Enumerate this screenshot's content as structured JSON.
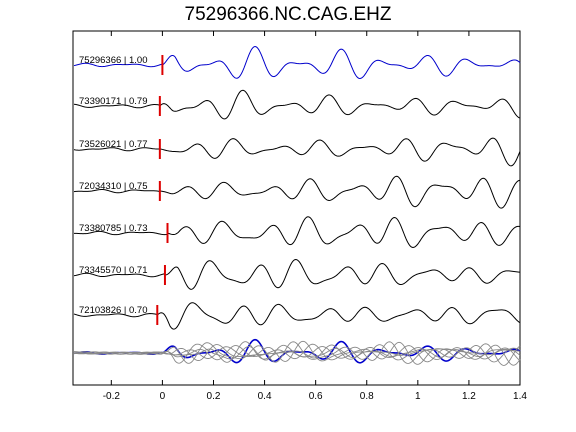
{
  "chart_data": {
    "type": "line",
    "title": "75296366.NC.CAG.EHZ",
    "xlabel": "",
    "ylabel": "",
    "xlim": [
      -0.35,
      1.4
    ],
    "xticks": [
      "-0.2",
      "0",
      "0.2",
      "0.4",
      "0.6",
      "0.8",
      "1",
      "1.2",
      "1.4"
    ],
    "xtick_values": [
      -0.2,
      0,
      0.2,
      0.4,
      0.6,
      0.8,
      1.0,
      1.2,
      1.4
    ],
    "colors": {
      "reference": "#0000cc",
      "trace": "#000000",
      "pick": "#dd0000",
      "overlay": "#888888"
    },
    "traces": [
      {
        "label": "75296366 | 1.00",
        "pick": 0.0,
        "color": "reference"
      },
      {
        "label": "73390171 | 0.79",
        "pick": -0.01,
        "color": "trace"
      },
      {
        "label": "73526021 | 0.77",
        "pick": -0.01,
        "color": "trace"
      },
      {
        "label": "72034310 | 0.75",
        "pick": -0.01,
        "color": "trace"
      },
      {
        "label": "73380785 | 0.73",
        "pick": 0.02,
        "color": "trace"
      },
      {
        "label": "73345570 | 0.71",
        "pick": 0.01,
        "color": "trace"
      },
      {
        "label": "72103826 | 0.70",
        "pick": -0.02,
        "color": "trace"
      }
    ],
    "stack": {
      "label": "",
      "color": "overlay"
    }
  }
}
